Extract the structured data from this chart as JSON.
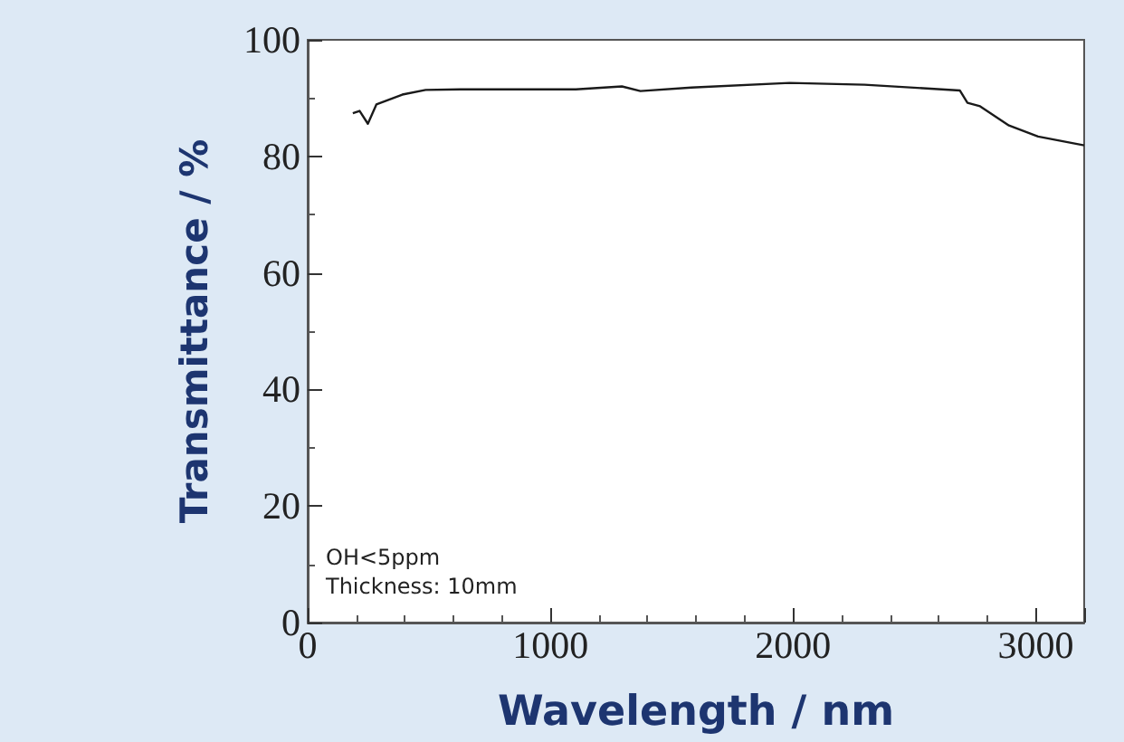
{
  "chart_data": {
    "type": "line",
    "xlabel": "Wavelength / nm",
    "ylabel": "Transmittance / %",
    "annotations": [
      "OH<5ppm",
      "Thickness: 10mm"
    ],
    "x": [
      186,
      214,
      248,
      283,
      390,
      486,
      629,
      1105,
      1295,
      1371,
      1581,
      1986,
      2295,
      2688,
      2719,
      2771,
      2890,
      3010,
      3200
    ],
    "series": [
      {
        "color": "#1a1a1a",
        "values": [
          87.4,
          87.8,
          85.6,
          88.9,
          90.6,
          91.4,
          91.5,
          91.5,
          92.0,
          91.2,
          91.8,
          92.6,
          92.3,
          91.3,
          89.2,
          88.6,
          85.3,
          83.4,
          81.9
        ]
      }
    ],
    "xlim": [
      0,
      3200
    ],
    "xticks": [
      0,
      1000,
      2000,
      3000
    ],
    "ylim": [
      0,
      100
    ],
    "yticks": [
      0,
      20,
      40,
      60,
      80,
      100
    ],
    "grid": false,
    "marker": "none",
    "line_style": "solid"
  }
}
